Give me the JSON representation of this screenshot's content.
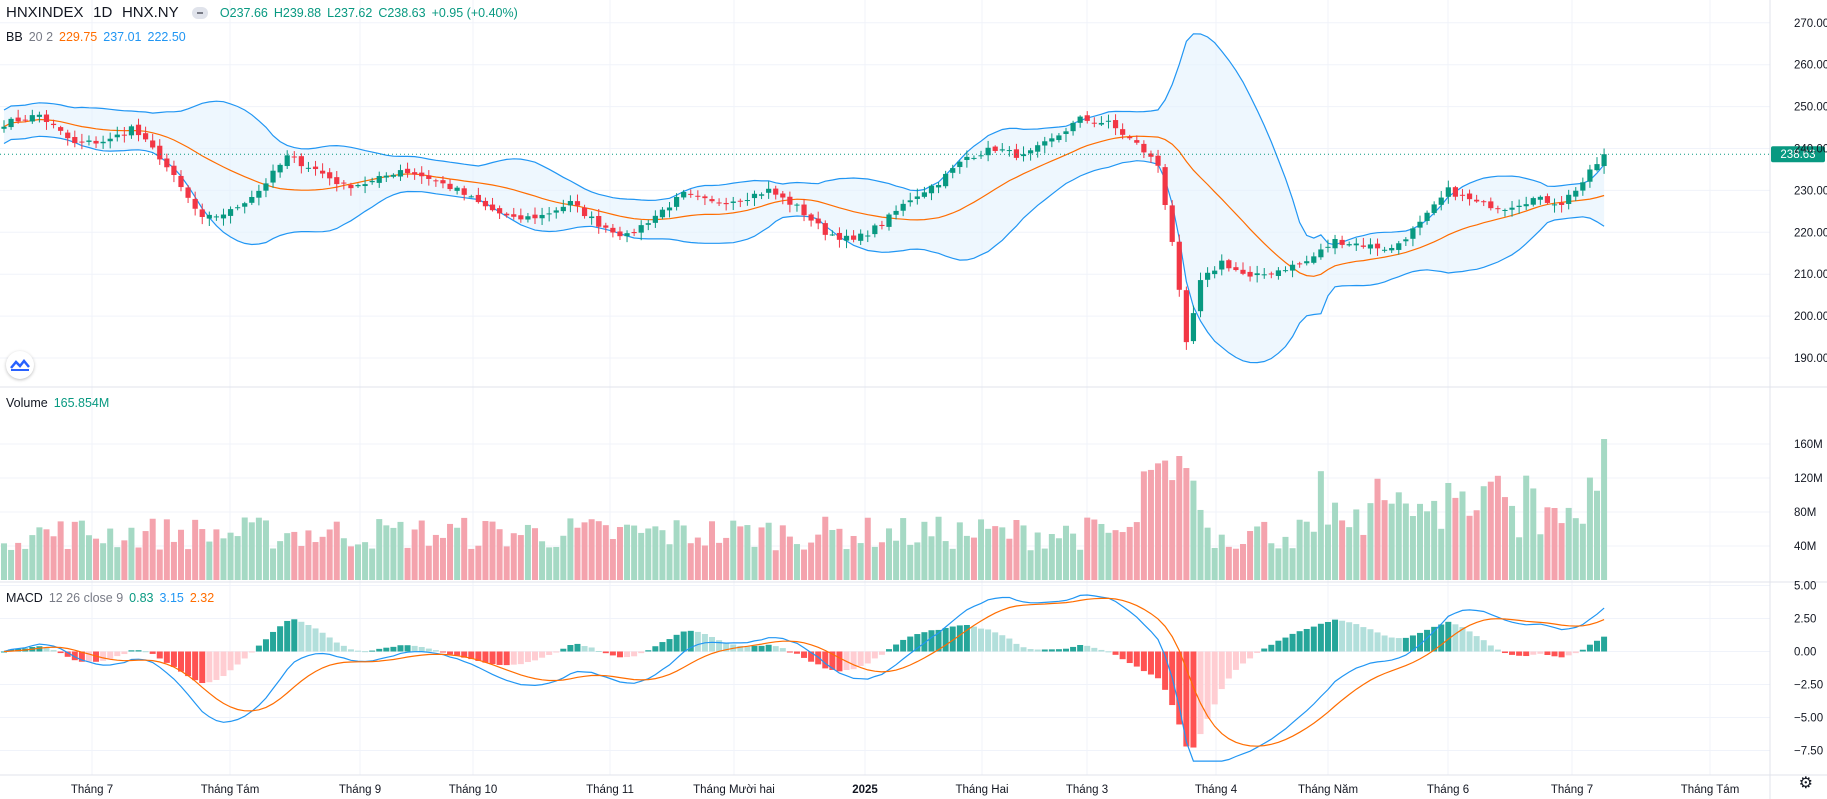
{
  "header": {
    "symbol": "HNXINDEX",
    "interval": "1D",
    "exchange": "HNX.NY",
    "ohlc": {
      "o": "O237.66",
      "h": "H239.88",
      "l": "L237.62",
      "c": "C238.63",
      "chg": "+0.95 (+0.40%)"
    },
    "bb": {
      "label": "BB",
      "params": "20 2",
      "basis": "229.75",
      "upper": "237.01",
      "lower": "222.50"
    },
    "volume": {
      "label": "Volume",
      "value": "165.854M"
    },
    "macd": {
      "label": "MACD",
      "params": "12 26 close 9",
      "hist": "0.83",
      "macd": "3.15",
      "signal": "2.32"
    }
  },
  "colors": {
    "up": "#089981",
    "down": "#f23645",
    "bb_basis": "#ff6d00",
    "bb_band": "#2196f3",
    "bb_fill": "#e3f2fd",
    "vol_up": "#a5d9c4",
    "vol_down": "#f4a3ad",
    "macd_line": "#2196f3",
    "signal_line": "#ff6d00",
    "hist_up_strong": "#26a69a",
    "hist_up_weak": "#b2dfdb",
    "hist_down_strong": "#ff5252",
    "hist_down_weak": "#ffcdd2"
  },
  "icons": {
    "logo": "tradingview-logo-icon",
    "settings": "gear-icon",
    "visibility": "eye-toggle-icon"
  },
  "chart_data": [
    {
      "type": "candlestick",
      "title": "HNXINDEX 1D HNX.NY",
      "ylim": [
        185,
        272
      ],
      "yticks": [
        190,
        200,
        210,
        220,
        230,
        240,
        250,
        260,
        270
      ],
      "ytick_labels": [
        "190.00",
        "200.00",
        "210.00",
        "220.00",
        "230.00",
        "240.00",
        "250.00",
        "260.00",
        "270.00"
      ],
      "last_price_label": "238.63",
      "x_labels": [
        "Tháng 7",
        "Tháng Tám",
        "Tháng 9",
        "Tháng 10",
        "Tháng 11",
        "Tháng Mười hai",
        "2025",
        "Tháng Hai",
        "Tháng 3",
        "Tháng 4",
        "Tháng Năm",
        "Tháng 6",
        "Tháng 7",
        "Tháng Tám"
      ],
      "anchors": [
        [
          0,
          246
        ],
        [
          5,
          248
        ],
        [
          10,
          241
        ],
        [
          15,
          242
        ],
        [
          18,
          245
        ],
        [
          22,
          238
        ],
        [
          28,
          223
        ],
        [
          32,
          225
        ],
        [
          36,
          230
        ],
        [
          40,
          238
        ],
        [
          44,
          235
        ],
        [
          48,
          231
        ],
        [
          52,
          232
        ],
        [
          56,
          235
        ],
        [
          60,
          233
        ],
        [
          64,
          230
        ],
        [
          68,
          226
        ],
        [
          72,
          223
        ],
        [
          76,
          224
        ],
        [
          80,
          227
        ],
        [
          84,
          222
        ],
        [
          88,
          219
        ],
        [
          92,
          224
        ],
        [
          96,
          229
        ],
        [
          100,
          227
        ],
        [
          104,
          228
        ],
        [
          108,
          230
        ],
        [
          112,
          226
        ],
        [
          116,
          220
        ],
        [
          120,
          218
        ],
        [
          124,
          222
        ],
        [
          128,
          228
        ],
        [
          132,
          232
        ],
        [
          136,
          238
        ],
        [
          140,
          240
        ],
        [
          144,
          238
        ],
        [
          148,
          242
        ],
        [
          152,
          247
        ],
        [
          156,
          246
        ],
        [
          160,
          241
        ],
        [
          163,
          236
        ],
        [
          165,
          218
        ],
        [
          167,
          193
        ],
        [
          169,
          208
        ],
        [
          172,
          213
        ],
        [
          176,
          209
        ],
        [
          180,
          211
        ],
        [
          184,
          213
        ],
        [
          188,
          218
        ],
        [
          192,
          217
        ],
        [
          196,
          216
        ],
        [
          200,
          222
        ],
        [
          204,
          230
        ],
        [
          208,
          227
        ],
        [
          212,
          226
        ],
        [
          216,
          228
        ],
        [
          220,
          227
        ],
        [
          223,
          232
        ],
        [
          226,
          238.6
        ]
      ],
      "bb": {
        "basis_last": 229.75,
        "upper_last": 237.01,
        "lower_last": 222.5
      }
    },
    {
      "type": "bar",
      "title": "Volume",
      "yticks": [
        40,
        80,
        120,
        160
      ],
      "ytick_labels": [
        "40M",
        "80M",
        "120M",
        "160M"
      ],
      "last_value": 165.854,
      "unit": "M"
    },
    {
      "type": "line",
      "title": "MACD 12 26 close 9",
      "yticks": [
        5,
        2.5,
        0,
        -2.5,
        -5,
        -7.5
      ],
      "ytick_labels": [
        "5.00",
        "2.50",
        "0.00",
        "−2.50",
        "−5.00",
        "−7.50"
      ],
      "ylim": [
        -8.5,
        5
      ],
      "last": {
        "hist": 0.83,
        "macd": 3.15,
        "signal": 2.32
      }
    }
  ]
}
